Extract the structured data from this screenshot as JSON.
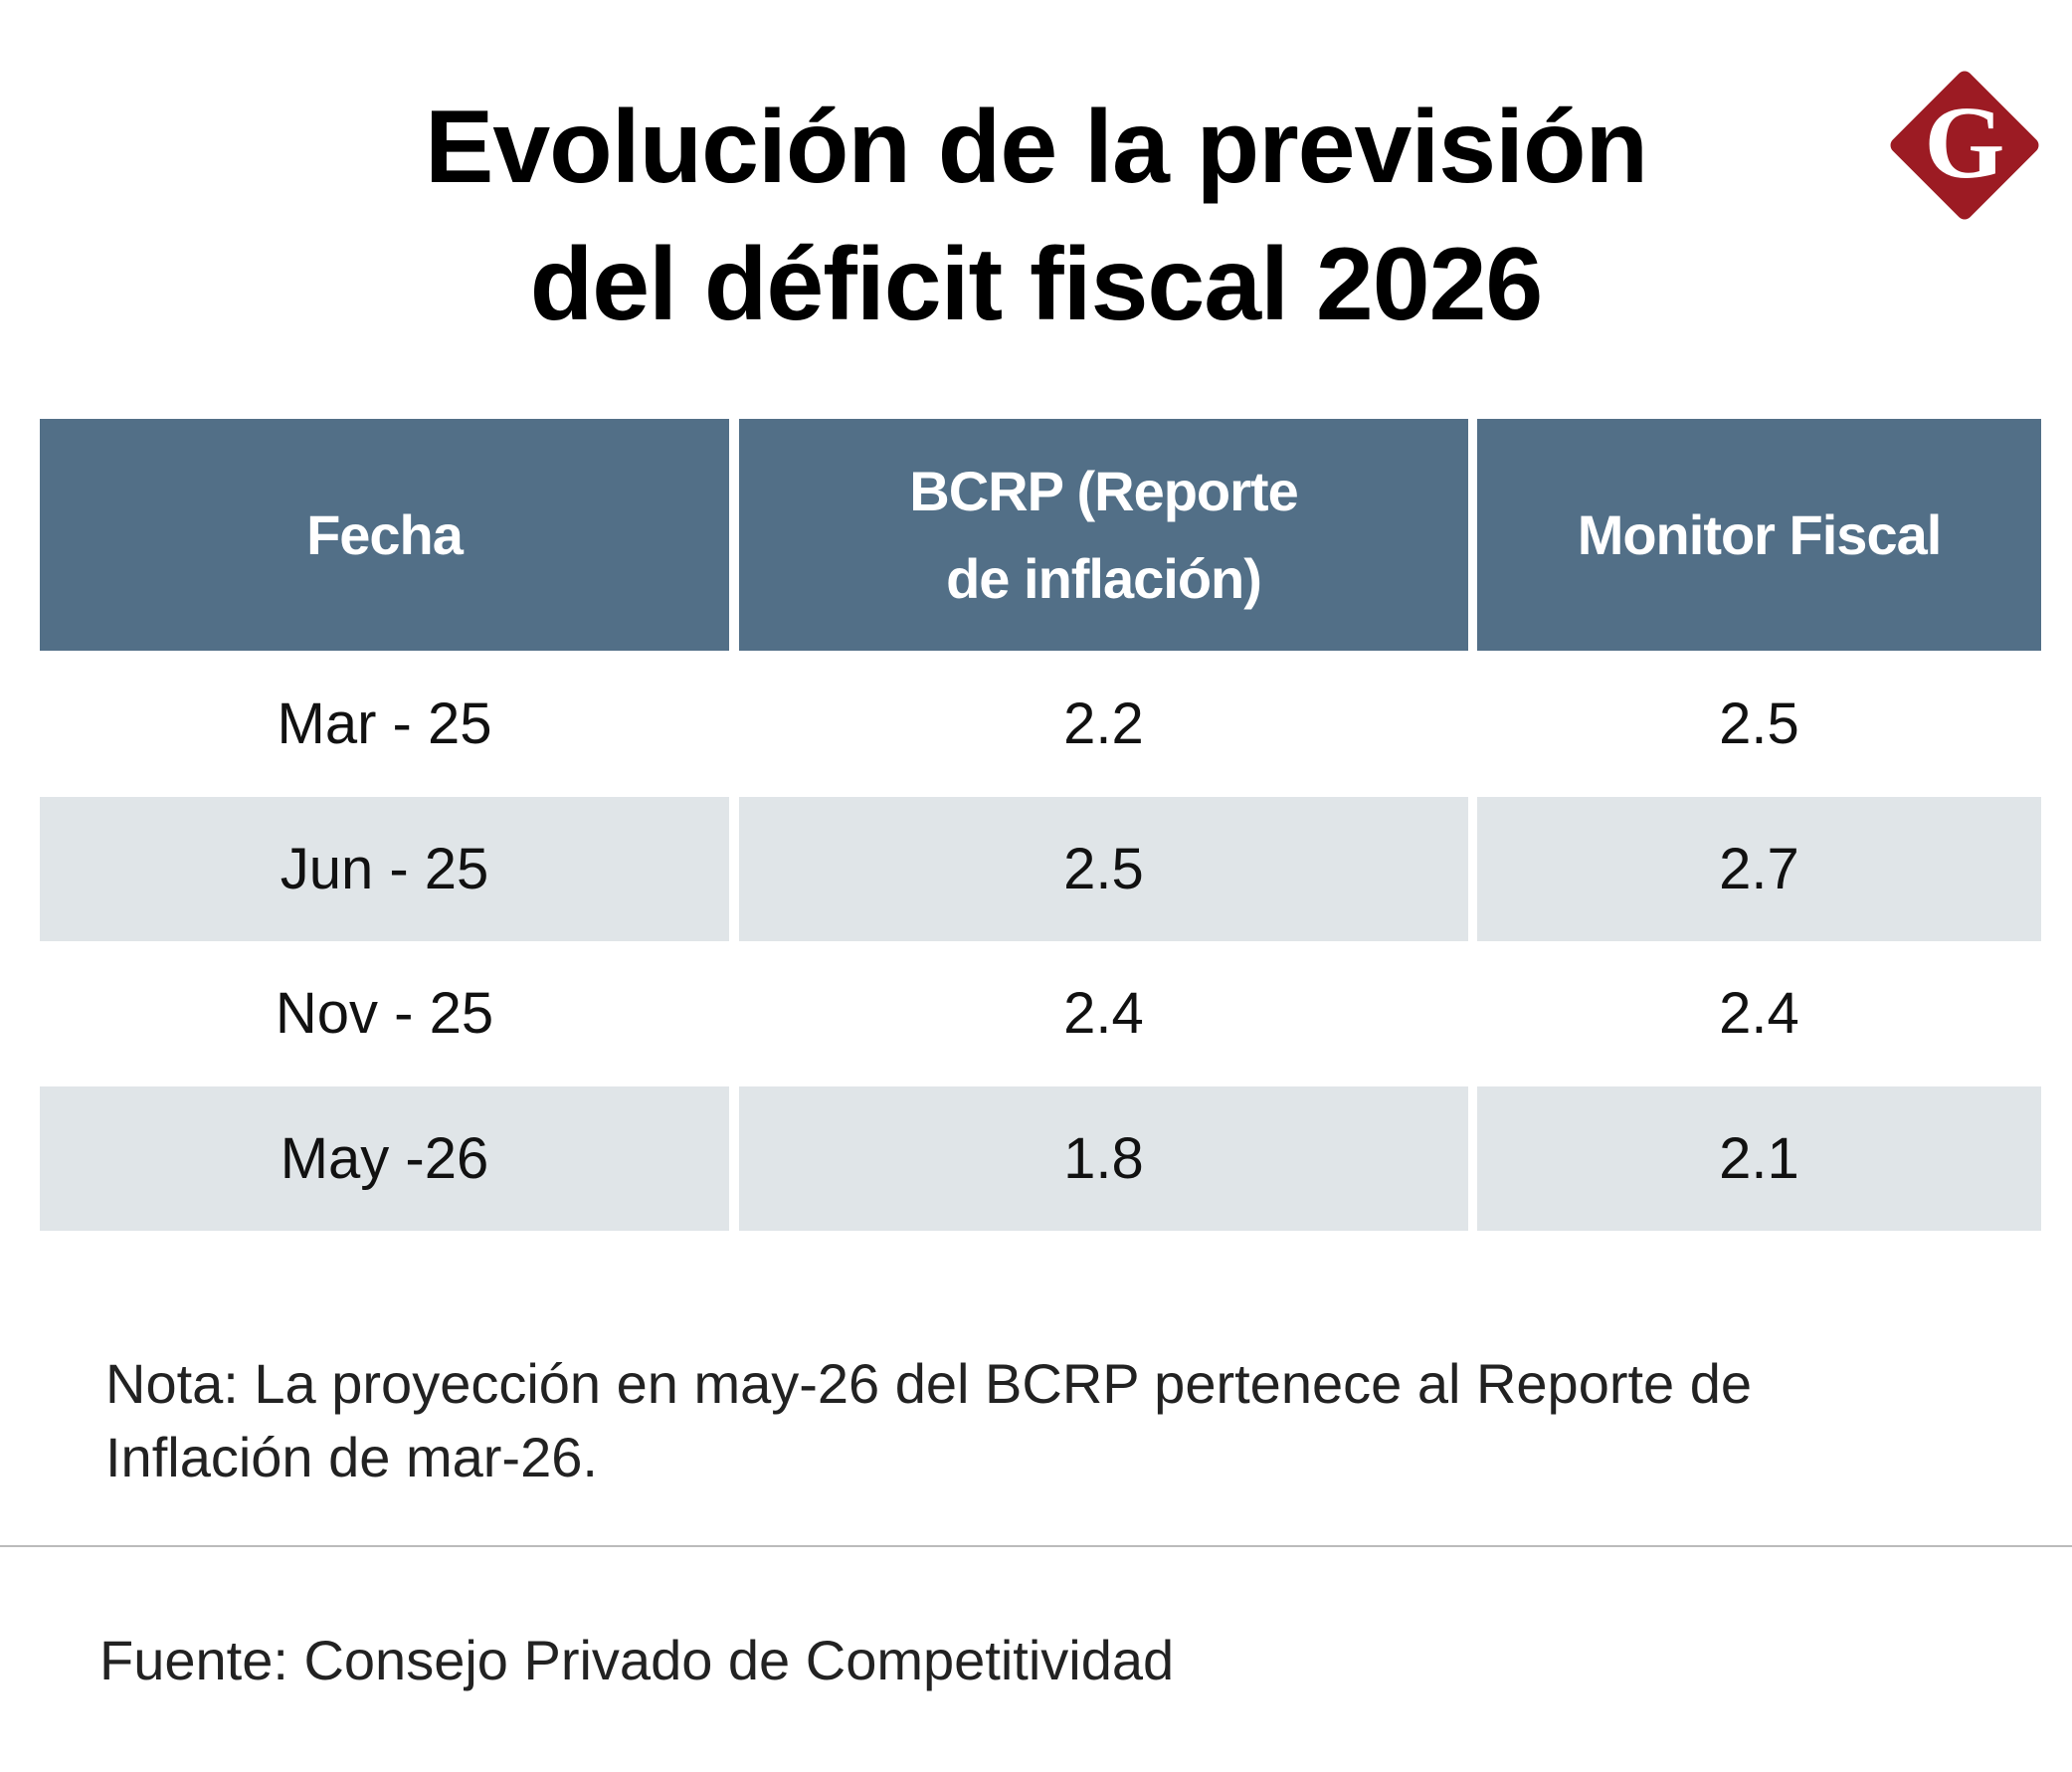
{
  "header": {
    "title": [
      "Evolución de la previsión",
      "del déficit fiscal 2026"
    ],
    "logo": "G"
  },
  "table": {
    "columns": [
      "Fecha",
      [
        "BCRP (Reporte",
        "de inflación)"
      ],
      "Monitor Fiscal"
    ],
    "rows": [
      [
        "Mar - 25",
        2.2,
        2.5
      ],
      [
        "Jun - 25",
        2.5,
        2.7
      ],
      [
        "Nov - 25",
        2.4,
        2.4
      ],
      [
        "May -26",
        1.8,
        2.1
      ]
    ]
  },
  "note": [
    "Nota: La proyección en may-26 del BCRP pertenece al Reporte de",
    "Inflación de mar-26."
  ],
  "source": "Fuente: Consejo Privado de Competitividad"
}
